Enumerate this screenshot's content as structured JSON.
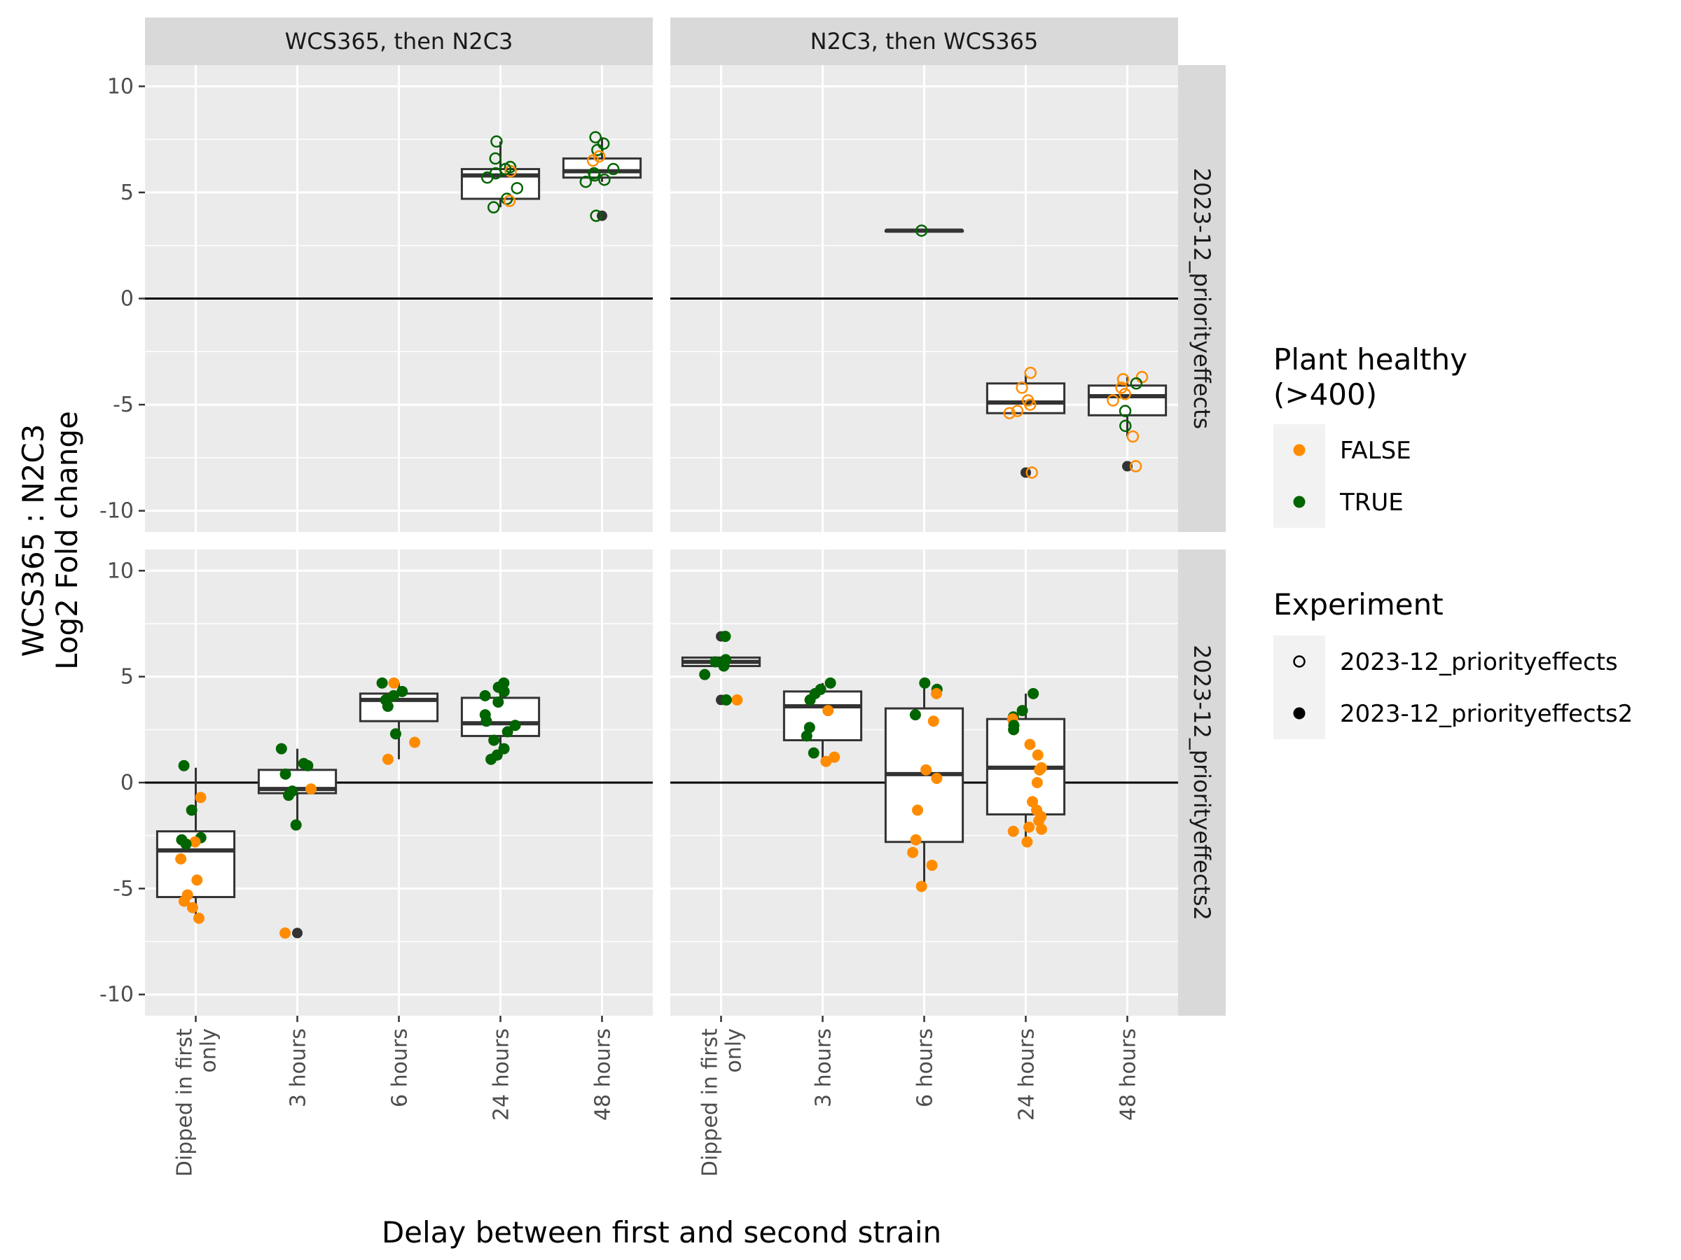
{
  "chart_data": {
    "type": "box",
    "ylabel": "WCS365 : N2C3\nLog2 Fold change",
    "xlabel": "Delay between first and second strain",
    "categories": [
      "Dipped in first\nonly",
      "3 hours",
      "6 hours",
      "24 hours",
      "48 hours"
    ],
    "col_facets": [
      "WCS365, then N2C3",
      "N2C3, then WCS365"
    ],
    "row_facets": [
      "2023-12_priorityeffects",
      "2023-12_priorityeffects2"
    ],
    "ylim": [
      -11,
      11
    ],
    "yticks": [
      -10,
      -5,
      0,
      5,
      10
    ],
    "hline": 0,
    "grid": true,
    "colors": {
      "FALSE": "#ff8c00",
      "TRUE": "#006400",
      "outlier": "#333333"
    },
    "legend": {
      "position": "right",
      "color_title": "Plant healthy\n(>400)",
      "color_items": [
        "FALSE",
        "TRUE"
      ],
      "shape_title": "Experiment",
      "shape_items": [
        "2023-12_priorityeffects",
        "2023-12_priorityeffects2"
      ]
    },
    "panels": [
      {
        "row": 0,
        "col": 0,
        "shape": "open",
        "boxes": [
          {
            "x": 3,
            "q1": 4.7,
            "med": 5.8,
            "q3": 6.1,
            "lo": 4.3,
            "hi": 7.4
          },
          {
            "x": 4,
            "q1": 5.7,
            "med": 6.0,
            "q3": 6.6,
            "lo": 5.5,
            "hi": 7.6,
            "outliers": [
              3.9
            ]
          }
        ],
        "points": [
          {
            "x": 3,
            "y": 7.4,
            "h": true
          },
          {
            "x": 3,
            "y": 6.6,
            "h": true
          },
          {
            "x": 3,
            "y": 6.2,
            "h": true
          },
          {
            "x": 3,
            "y": 6.0,
            "h": false
          },
          {
            "x": 3,
            "y": 6.1,
            "h": true
          },
          {
            "x": 3,
            "y": 5.9,
            "h": true
          },
          {
            "x": 3,
            "y": 5.7,
            "h": true
          },
          {
            "x": 3,
            "y": 5.2,
            "h": true
          },
          {
            "x": 3,
            "y": 4.7,
            "h": true
          },
          {
            "x": 3,
            "y": 4.6,
            "h": false
          },
          {
            "x": 3,
            "y": 4.3,
            "h": true
          },
          {
            "x": 4,
            "y": 7.6,
            "h": true
          },
          {
            "x": 4,
            "y": 7.3,
            "h": true
          },
          {
            "x": 4,
            "y": 7.0,
            "h": true
          },
          {
            "x": 4,
            "y": 6.7,
            "h": false
          },
          {
            "x": 4,
            "y": 6.5,
            "h": false
          },
          {
            "x": 4,
            "y": 6.1,
            "h": true
          },
          {
            "x": 4,
            "y": 5.9,
            "h": true
          },
          {
            "x": 4,
            "y": 5.8,
            "h": true
          },
          {
            "x": 4,
            "y": 5.6,
            "h": true
          },
          {
            "x": 4,
            "y": 5.5,
            "h": true
          },
          {
            "x": 4,
            "y": 3.9,
            "h": true
          }
        ]
      },
      {
        "row": 0,
        "col": 1,
        "shape": "open",
        "boxes": [
          {
            "x": 2,
            "q1": 3.2,
            "med": 3.2,
            "q3": 3.2,
            "lo": 3.2,
            "hi": 3.2
          },
          {
            "x": 3,
            "q1": -5.4,
            "med": -4.9,
            "q3": -4.0,
            "lo": -5.4,
            "hi": -3.6,
            "outliers": [
              -8.2
            ]
          },
          {
            "x": 4,
            "q1": -5.5,
            "med": -4.6,
            "q3": -4.1,
            "lo": -6.5,
            "hi": -3.7,
            "outliers": [
              -7.9
            ]
          }
        ],
        "points": [
          {
            "x": 2,
            "y": 3.2,
            "h": true
          },
          {
            "x": 3,
            "y": -3.5,
            "h": false
          },
          {
            "x": 3,
            "y": -4.2,
            "h": false
          },
          {
            "x": 3,
            "y": -4.8,
            "h": false
          },
          {
            "x": 3,
            "y": -5.0,
            "h": false
          },
          {
            "x": 3,
            "y": -5.3,
            "h": false
          },
          {
            "x": 3,
            "y": -5.4,
            "h": false
          },
          {
            "x": 3,
            "y": -8.2,
            "h": false
          },
          {
            "x": 4,
            "y": -3.8,
            "h": false
          },
          {
            "x": 4,
            "y": -3.7,
            "h": false
          },
          {
            "x": 4,
            "y": -4.0,
            "h": true
          },
          {
            "x": 4,
            "y": -4.2,
            "h": false
          },
          {
            "x": 4,
            "y": -4.5,
            "h": false
          },
          {
            "x": 4,
            "y": -4.8,
            "h": false
          },
          {
            "x": 4,
            "y": -5.3,
            "h": true
          },
          {
            "x": 4,
            "y": -6.0,
            "h": true
          },
          {
            "x": 4,
            "y": -6.5,
            "h": false
          },
          {
            "x": 4,
            "y": -7.9,
            "h": false
          }
        ]
      },
      {
        "row": 1,
        "col": 0,
        "shape": "filled",
        "boxes": [
          {
            "x": 0,
            "q1": -5.4,
            "med": -3.2,
            "q3": -2.3,
            "lo": -6.4,
            "hi": 0.7
          },
          {
            "x": 1,
            "q1": -0.5,
            "med": -0.3,
            "q3": 0.6,
            "lo": -2.0,
            "hi": 1.6,
            "outliers": [
              -7.1
            ]
          },
          {
            "x": 2,
            "q1": 2.9,
            "med": 3.9,
            "q3": 4.2,
            "lo": 1.1,
            "hi": 4.7
          },
          {
            "x": 3,
            "q1": 2.2,
            "med": 2.8,
            "q3": 4.0,
            "lo": 1.1,
            "hi": 4.7
          }
        ],
        "points": [
          {
            "x": 0,
            "y": 0.8,
            "h": true
          },
          {
            "x": 0,
            "y": -0.7,
            "h": false
          },
          {
            "x": 0,
            "y": -1.3,
            "h": true
          },
          {
            "x": 0,
            "y": -2.6,
            "h": true
          },
          {
            "x": 0,
            "y": -2.8,
            "h": false
          },
          {
            "x": 0,
            "y": -2.7,
            "h": true
          },
          {
            "x": 0,
            "y": -2.9,
            "h": true
          },
          {
            "x": 0,
            "y": -3.6,
            "h": false
          },
          {
            "x": 0,
            "y": -4.6,
            "h": false
          },
          {
            "x": 0,
            "y": -5.3,
            "h": false
          },
          {
            "x": 0,
            "y": -5.6,
            "h": false
          },
          {
            "x": 0,
            "y": -5.9,
            "h": false
          },
          {
            "x": 0,
            "y": -6.4,
            "h": false
          },
          {
            "x": 1,
            "y": 1.6,
            "h": true
          },
          {
            "x": 1,
            "y": 0.9,
            "h": true
          },
          {
            "x": 1,
            "y": 0.8,
            "h": true
          },
          {
            "x": 1,
            "y": 0.4,
            "h": true
          },
          {
            "x": 1,
            "y": -0.3,
            "h": false
          },
          {
            "x": 1,
            "y": -0.4,
            "h": true
          },
          {
            "x": 1,
            "y": -0.6,
            "h": true
          },
          {
            "x": 1,
            "y": -2.0,
            "h": true
          },
          {
            "x": 1,
            "y": -7.1,
            "h": false
          },
          {
            "x": 2,
            "y": 4.7,
            "h": true
          },
          {
            "x": 2,
            "y": 4.7,
            "h": false
          },
          {
            "x": 2,
            "y": 4.3,
            "h": true
          },
          {
            "x": 2,
            "y": 4.1,
            "h": true
          },
          {
            "x": 2,
            "y": 3.9,
            "h": true
          },
          {
            "x": 2,
            "y": 3.6,
            "h": true
          },
          {
            "x": 2,
            "y": 2.3,
            "h": true
          },
          {
            "x": 2,
            "y": 1.9,
            "h": false
          },
          {
            "x": 2,
            "y": 1.1,
            "h": false
          },
          {
            "x": 3,
            "y": 4.7,
            "h": true
          },
          {
            "x": 3,
            "y": 4.5,
            "h": true
          },
          {
            "x": 3,
            "y": 4.3,
            "h": true
          },
          {
            "x": 3,
            "y": 4.1,
            "h": true
          },
          {
            "x": 3,
            "y": 3.8,
            "h": true
          },
          {
            "x": 3,
            "y": 3.2,
            "h": true
          },
          {
            "x": 3,
            "y": 2.9,
            "h": true
          },
          {
            "x": 3,
            "y": 2.7,
            "h": true
          },
          {
            "x": 3,
            "y": 2.4,
            "h": true
          },
          {
            "x": 3,
            "y": 2.0,
            "h": true
          },
          {
            "x": 3,
            "y": 1.6,
            "h": true
          },
          {
            "x": 3,
            "y": 1.3,
            "h": true
          },
          {
            "x": 3,
            "y": 1.1,
            "h": true
          }
        ]
      },
      {
        "row": 1,
        "col": 1,
        "shape": "filled",
        "boxes": [
          {
            "x": 0,
            "q1": 5.5,
            "med": 5.7,
            "q3": 5.9,
            "lo": 5.5,
            "hi": 5.9,
            "outliers": [
              6.9,
              3.9
            ]
          },
          {
            "x": 1,
            "q1": 2.0,
            "med": 3.6,
            "q3": 4.3,
            "lo": 1.1,
            "hi": 4.7
          },
          {
            "x": 2,
            "q1": -2.8,
            "med": 0.4,
            "q3": 3.5,
            "lo": -4.9,
            "hi": 4.7
          },
          {
            "x": 3,
            "q1": -1.5,
            "med": 0.7,
            "q3": 3.0,
            "lo": -2.8,
            "hi": 4.2
          }
        ],
        "points": [
          {
            "x": 0,
            "y": 6.9,
            "h": true
          },
          {
            "x": 0,
            "y": 5.8,
            "h": true
          },
          {
            "x": 0,
            "y": 5.7,
            "h": true
          },
          {
            "x": 0,
            "y": 5.6,
            "h": true
          },
          {
            "x": 0,
            "y": 5.5,
            "h": true
          },
          {
            "x": 0,
            "y": 5.1,
            "h": true
          },
          {
            "x": 0,
            "y": 3.9,
            "h": false
          },
          {
            "x": 0,
            "y": 3.9,
            "h": true
          },
          {
            "x": 1,
            "y": 4.7,
            "h": true
          },
          {
            "x": 1,
            "y": 4.4,
            "h": true
          },
          {
            "x": 1,
            "y": 4.2,
            "h": true
          },
          {
            "x": 1,
            "y": 3.9,
            "h": true
          },
          {
            "x": 1,
            "y": 3.4,
            "h": false
          },
          {
            "x": 1,
            "y": 2.6,
            "h": true
          },
          {
            "x": 1,
            "y": 2.2,
            "h": true
          },
          {
            "x": 1,
            "y": 1.4,
            "h": true
          },
          {
            "x": 1,
            "y": 1.2,
            "h": false
          },
          {
            "x": 1,
            "y": 1.0,
            "h": false
          },
          {
            "x": 2,
            "y": 4.7,
            "h": true
          },
          {
            "x": 2,
            "y": 4.4,
            "h": true
          },
          {
            "x": 2,
            "y": 4.2,
            "h": false
          },
          {
            "x": 2,
            "y": 3.2,
            "h": true
          },
          {
            "x": 2,
            "y": 2.9,
            "h": false
          },
          {
            "x": 2,
            "y": 0.6,
            "h": false
          },
          {
            "x": 2,
            "y": 0.2,
            "h": false
          },
          {
            "x": 2,
            "y": -1.3,
            "h": false
          },
          {
            "x": 2,
            "y": -2.7,
            "h": false
          },
          {
            "x": 2,
            "y": -3.3,
            "h": false
          },
          {
            "x": 2,
            "y": -3.9,
            "h": false
          },
          {
            "x": 2,
            "y": -4.9,
            "h": false
          },
          {
            "x": 3,
            "y": 4.2,
            "h": true
          },
          {
            "x": 3,
            "y": 3.4,
            "h": true
          },
          {
            "x": 3,
            "y": 3.1,
            "h": true
          },
          {
            "x": 3,
            "y": 3.0,
            "h": false
          },
          {
            "x": 3,
            "y": 2.7,
            "h": true
          },
          {
            "x": 3,
            "y": 2.5,
            "h": true
          },
          {
            "x": 3,
            "y": 1.8,
            "h": false
          },
          {
            "x": 3,
            "y": 1.3,
            "h": false
          },
          {
            "x": 3,
            "y": 0.7,
            "h": false
          },
          {
            "x": 3,
            "y": 0.6,
            "h": false
          },
          {
            "x": 3,
            "y": 0.0,
            "h": false
          },
          {
            "x": 3,
            "y": -0.9,
            "h": false
          },
          {
            "x": 3,
            "y": -1.3,
            "h": false
          },
          {
            "x": 3,
            "y": -1.6,
            "h": false
          },
          {
            "x": 3,
            "y": -1.8,
            "h": false
          },
          {
            "x": 3,
            "y": -2.1,
            "h": false
          },
          {
            "x": 3,
            "y": -2.2,
            "h": false
          },
          {
            "x": 3,
            "y": -2.3,
            "h": false
          },
          {
            "x": 3,
            "y": -2.8,
            "h": false
          }
        ]
      }
    ]
  }
}
